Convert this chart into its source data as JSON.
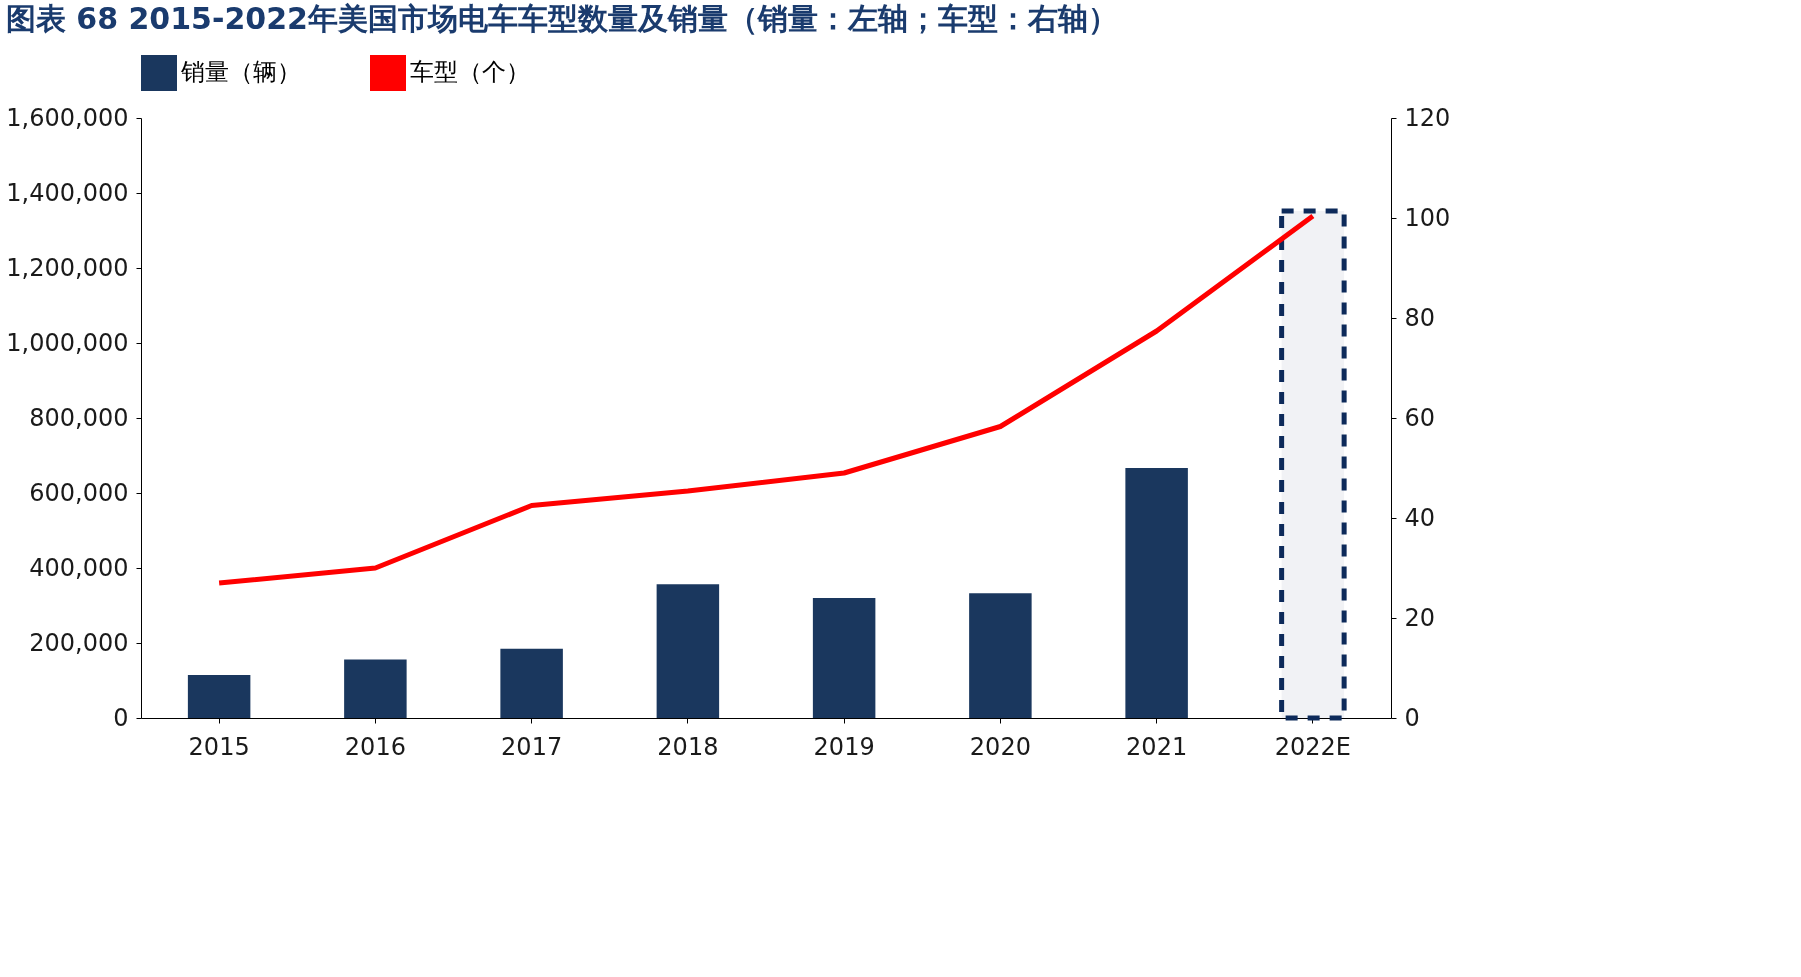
{
  "chart_data": {
    "type": "bar",
    "title": "图表 68   2015-2022年美国市场电车车型数量及销量（销量：左轴；车型：右轴）",
    "categories": [
      "2015",
      "2016",
      "2017",
      "2018",
      "2019",
      "2020",
      "2021",
      "2022E"
    ],
    "series": [
      {
        "name": "销量（辆）",
        "color": "#1a375e",
        "values": [
          115000,
          156000,
          185000,
          357000,
          320000,
          333000,
          667000,
          null
        ]
      },
      {
        "name": "车型（个）",
        "type": "line",
        "axis": "y2",
        "color": "#ff0000",
        "values": [
          27,
          30,
          42.5,
          45.4,
          49,
          58.3,
          77.4,
          100.4
        ]
      }
    ],
    "ylim": [
      0,
      1600000
    ],
    "yticks": [
      0,
      {
        "value": 200000,
        "label": "200,000"
      },
      {
        "value": 400000,
        "label": "400,000"
      },
      {
        "value": 600000,
        "label": "600,000"
      },
      {
        "value": 800000,
        "label": "800,000"
      },
      {
        "value": 1000000,
        "label": "1,000,000"
      },
      {
        "value": 1200000,
        "label": "1,200,000"
      },
      {
        "value": 1400000,
        "label": "1,400,000"
      },
      {
        "value": 1600000,
        "label": "1,600,000"
      }
    ],
    "y2lim": [
      0,
      120
    ],
    "y2ticks": [
      0,
      20,
      40,
      60,
      80,
      100,
      120
    ],
    "bands": [
      {
        "axis": "x",
        "from": "2022E",
        "to": "2022E",
        "color": "#0d2a5a"
      }
    ],
    "grid": false,
    "legend": "top",
    "marker": "none",
    "line_style": "solid"
  }
}
